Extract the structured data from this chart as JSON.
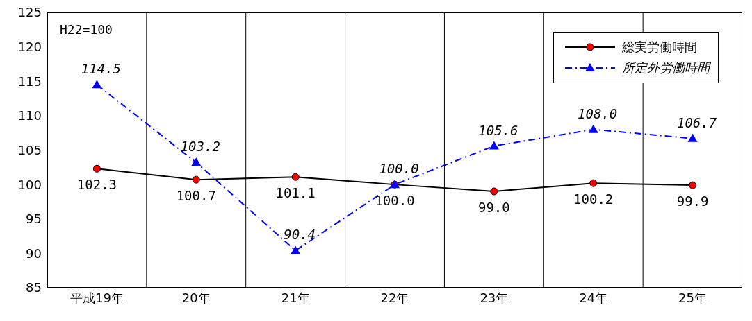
{
  "chart_data": {
    "type": "line",
    "categories": [
      "平成19年",
      "20年",
      "21年",
      "22年",
      "23年",
      "24年",
      "25年"
    ],
    "series": [
      {
        "name": "総実労働時間",
        "color": "#000000",
        "marker": "circle",
        "line_style": "solid",
        "values": [
          102.3,
          100.7,
          101.1,
          100.0,
          99.0,
          100.2,
          99.9
        ],
        "value_labels": [
          "102.3",
          "100.7",
          "101.1",
          "100.0",
          "99.0",
          "100.2",
          "99.9"
        ]
      },
      {
        "name": "所定外労働時間",
        "color": "#0000ff",
        "marker": "triangle",
        "line_style": "dashed",
        "values": [
          114.5,
          103.2,
          90.4,
          100.0,
          105.6,
          108.0,
          106.7
        ],
        "value_labels": [
          "114.5",
          "103.2",
          "90.4",
          "100.0",
          "105.6",
          "108.0",
          "106.7"
        ]
      }
    ],
    "ylim": [
      85,
      125
    ],
    "yticks": [
      85,
      90,
      95,
      100,
      105,
      110,
      115,
      120,
      125
    ],
    "annotations": [
      "H22=100"
    ],
    "grid": "x",
    "legend": "top right"
  }
}
